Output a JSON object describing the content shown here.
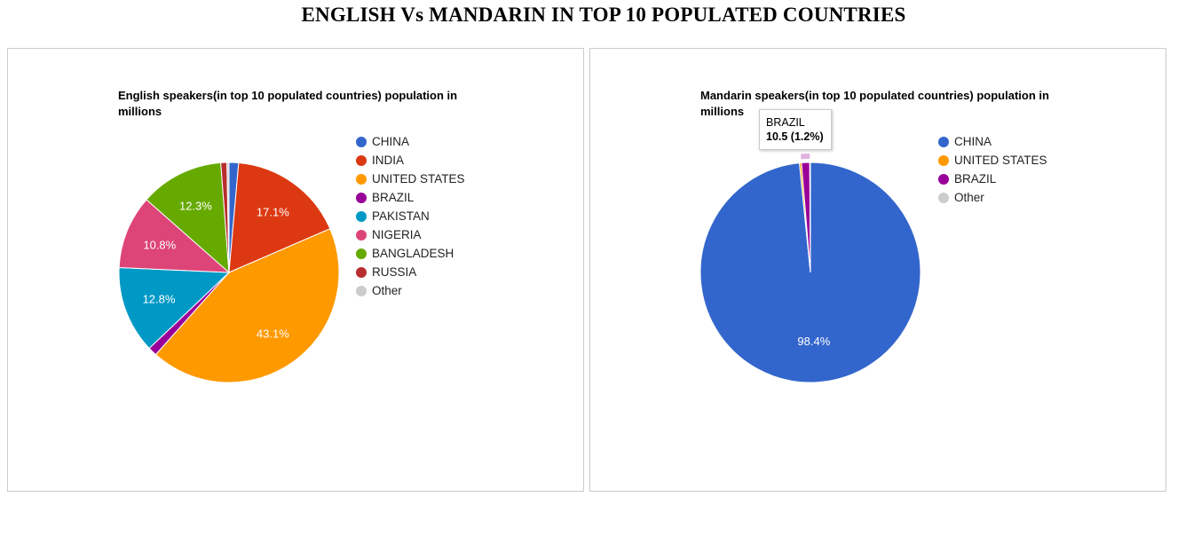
{
  "page": {
    "title": "ENGLISH Vs MANDARIN IN TOP 10 POPULATED COUNTRIES"
  },
  "chart_data": [
    {
      "type": "pie",
      "title": "English speakers(in top 10 populated countries) population in millions",
      "legend_position": "right",
      "slices": [
        {
          "label": "CHINA",
          "percent": 1.4,
          "color": "#3366cc"
        },
        {
          "label": "INDIA",
          "percent": 17.1,
          "color": "#dc3912"
        },
        {
          "label": "UNITED STATES",
          "percent": 43.1,
          "color": "#ff9900"
        },
        {
          "label": "BRAZIL",
          "percent": 1.3,
          "color": "#990099"
        },
        {
          "label": "PAKISTAN",
          "percent": 12.8,
          "color": "#0099c6"
        },
        {
          "label": "NIGERIA",
          "percent": 10.8,
          "color": "#dd4477"
        },
        {
          "label": "BANGLADESH",
          "percent": 12.3,
          "color": "#66aa00"
        },
        {
          "label": "RUSSIA",
          "percent": 0.9,
          "color": "#b82e2e"
        },
        {
          "label": "Other",
          "percent": 0.3,
          "color": "#cccccc"
        }
      ],
      "slice_labels": [
        "17.1%",
        "43.1%",
        "12.8%",
        "10.8%",
        "12.3%"
      ]
    },
    {
      "type": "pie",
      "title": "Mandarin speakers(in top 10 populated countries) population in millions",
      "legend_position": "right",
      "slices": [
        {
          "label": "CHINA",
          "percent": 98.4,
          "color": "#3366cc"
        },
        {
          "label": "UNITED STATES",
          "percent": 0.3,
          "color": "#ff9900"
        },
        {
          "label": "BRAZIL",
          "percent": 1.2,
          "color": "#990099"
        },
        {
          "label": "Other",
          "percent": 0.1,
          "color": "#cccccc"
        }
      ],
      "slice_labels": [
        "98.4%"
      ],
      "tooltip": {
        "label": "BRAZIL",
        "value": "10.5 (1.2%)"
      }
    }
  ]
}
